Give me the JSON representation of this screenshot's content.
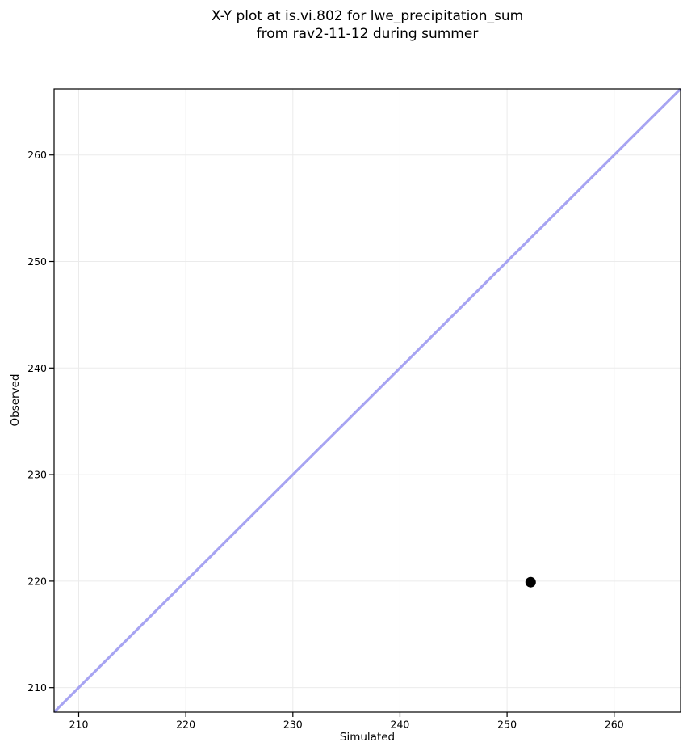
{
  "chart_data": {
    "type": "scatter",
    "title": "X-Y plot at is.vi.802 for lwe_precipitation_sum\nfrom rav2-11-12 during summer",
    "title_line1": "X-Y plot at is.vi.802 for lwe_precipitation_sum",
    "title_line2": "from rav2-11-12 during summer",
    "xlabel": "Simulated",
    "ylabel": "Observed",
    "xlim": [
      207.7,
      266.2
    ],
    "ylim": [
      207.7,
      266.2
    ],
    "xticks": [
      210,
      220,
      230,
      240,
      250,
      260
    ],
    "yticks": [
      210,
      220,
      230,
      240,
      250,
      260
    ],
    "grid": true,
    "legend": false,
    "series": [
      {
        "name": "data-points",
        "marker": "circle",
        "color": "#000000",
        "marker_radius": 6.5,
        "points": [
          {
            "x": 252.2,
            "y": 219.9
          }
        ]
      }
    ],
    "identity_line": {
      "color": "#a7a4f2",
      "width": 3.2
    },
    "style": {
      "grid_color": "#ebebeb",
      "spine_color": "#000000",
      "background": "#ffffff",
      "tick_label_size": 12.5
    }
  }
}
